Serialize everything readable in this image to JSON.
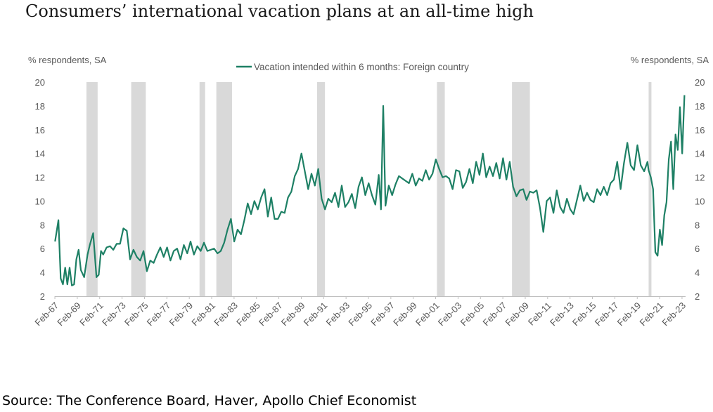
{
  "title": "Consumers’ international vacation plans at an all-time high",
  "source": "Source: The Conference Board, Haver, Apollo Chief Economist",
  "chart_data": {
    "type": "line",
    "ylabel_left": "% respondents, SA",
    "ylabel_right": "% respondents, SA",
    "ylim": [
      2,
      20
    ],
    "yticks": [
      2,
      4,
      6,
      8,
      10,
      12,
      14,
      16,
      18,
      20
    ],
    "xlim": [
      1967.08,
      2023.4
    ],
    "xtick_labels": [
      "Feb-67",
      "Feb-69",
      "Feb-71",
      "Feb-73",
      "Feb-75",
      "Feb-77",
      "Feb-79",
      "Feb-81",
      "Feb-83",
      "Feb-85",
      "Feb-87",
      "Feb-89",
      "Feb-91",
      "Feb-93",
      "Feb-95",
      "Feb-97",
      "Feb-99",
      "Feb-01",
      "Feb-03",
      "Feb-05",
      "Feb-07",
      "Feb-09",
      "Feb-11",
      "Feb-13",
      "Feb-15",
      "Feb-17",
      "Feb-19",
      "Feb-21",
      "Feb-23"
    ],
    "grid": false,
    "legend_position": "top-center",
    "recession_color": "#d9d9d9",
    "recessions": [
      [
        1969.9,
        1970.9
      ],
      [
        1973.9,
        1975.2
      ],
      [
        1980.0,
        1980.5
      ],
      [
        1981.5,
        1982.9
      ],
      [
        1990.5,
        1991.2
      ],
      [
        2001.2,
        2001.9
      ],
      [
        2007.9,
        2009.5
      ],
      [
        2020.1,
        2020.35
      ]
    ],
    "series": [
      {
        "name": "Vacation intended within 6 months: Foreign country",
        "color": "#1e8065",
        "x": [
          1967.1,
          1967.4,
          1967.6,
          1967.8,
          1968.0,
          1968.2,
          1968.4,
          1968.6,
          1968.8,
          1969.0,
          1969.2,
          1969.4,
          1969.7,
          1970.0,
          1970.2,
          1970.5,
          1970.8,
          1971.0,
          1971.2,
          1971.4,
          1971.7,
          1972.0,
          1972.3,
          1972.6,
          1972.9,
          1973.2,
          1973.5,
          1973.8,
          1974.1,
          1974.4,
          1974.7,
          1975.0,
          1975.3,
          1975.6,
          1975.9,
          1976.2,
          1976.5,
          1976.8,
          1977.1,
          1977.4,
          1977.7,
          1978.0,
          1978.3,
          1978.6,
          1978.9,
          1979.2,
          1979.5,
          1979.8,
          1980.1,
          1980.4,
          1980.7,
          1981.0,
          1981.3,
          1981.6,
          1981.9,
          1982.2,
          1982.5,
          1982.8,
          1983.1,
          1983.4,
          1983.7,
          1984.0,
          1984.3,
          1984.6,
          1984.9,
          1985.2,
          1985.5,
          1985.8,
          1986.1,
          1986.4,
          1986.7,
          1987.0,
          1987.3,
          1987.6,
          1987.9,
          1988.2,
          1988.5,
          1988.8,
          1989.1,
          1989.4,
          1989.7,
          1990.0,
          1990.3,
          1990.6,
          1990.9,
          1991.2,
          1991.5,
          1991.8,
          1992.1,
          1992.4,
          1992.7,
          1993.0,
          1993.3,
          1993.6,
          1993.9,
          1994.2,
          1994.5,
          1994.8,
          1995.1,
          1995.4,
          1995.7,
          1996.0,
          1996.2,
          1996.4,
          1996.6,
          1996.9,
          1997.2,
          1997.5,
          1997.8,
          1998.1,
          1998.4,
          1998.7,
          1999.0,
          1999.3,
          1999.6,
          1999.9,
          2000.2,
          2000.5,
          2000.8,
          2001.1,
          2001.4,
          2001.7,
          2002.0,
          2002.3,
          2002.6,
          2002.9,
          2003.2,
          2003.5,
          2003.8,
          2004.1,
          2004.4,
          2004.7,
          2005.0,
          2005.3,
          2005.6,
          2005.9,
          2006.2,
          2006.5,
          2006.8,
          2007.1,
          2007.4,
          2007.7,
          2008.0,
          2008.3,
          2008.6,
          2008.9,
          2009.2,
          2009.5,
          2009.8,
          2010.1,
          2010.4,
          2010.7,
          2011.0,
          2011.3,
          2011.6,
          2011.9,
          2012.2,
          2012.5,
          2012.8,
          2013.1,
          2013.4,
          2013.7,
          2014.0,
          2014.3,
          2014.6,
          2014.9,
          2015.2,
          2015.5,
          2015.8,
          2016.1,
          2016.4,
          2016.7,
          2017.0,
          2017.3,
          2017.6,
          2017.9,
          2018.2,
          2018.5,
          2018.8,
          2019.1,
          2019.4,
          2019.7,
          2020.0,
          2020.1,
          2020.3,
          2020.5,
          2020.7,
          2020.9,
          2021.1,
          2021.3,
          2021.5,
          2021.7,
          2021.9,
          2022.1,
          2022.3,
          2022.5,
          2022.7,
          2022.9,
          2023.1,
          2023.3
        ],
        "values": [
          6.6,
          8.4,
          3.5,
          3.0,
          4.4,
          3.0,
          4.4,
          2.9,
          3.0,
          5.1,
          5.9,
          4.2,
          3.6,
          5.5,
          6.3,
          7.3,
          3.6,
          3.8,
          5.8,
          5.5,
          6.1,
          6.2,
          5.9,
          6.4,
          6.4,
          7.7,
          7.5,
          5.1,
          5.9,
          5.3,
          5.0,
          5.8,
          4.1,
          5.0,
          4.8,
          5.5,
          6.1,
          5.3,
          6.1,
          5.0,
          5.8,
          6.0,
          5.1,
          6.3,
          5.6,
          6.6,
          5.5,
          6.2,
          5.8,
          6.5,
          5.8,
          5.9,
          6.0,
          5.6,
          5.8,
          6.5,
          7.6,
          8.5,
          6.6,
          7.6,
          7.2,
          8.4,
          9.8,
          8.9,
          10.0,
          9.3,
          10.3,
          11.0,
          8.7,
          10.3,
          8.5,
          8.5,
          9.1,
          9.0,
          10.3,
          10.8,
          12.1,
          12.7,
          14.0,
          12.5,
          11.0,
          12.3,
          11.3,
          12.7,
          10.2,
          9.3,
          10.2,
          9.9,
          10.7,
          9.5,
          11.3,
          9.5,
          9.9,
          10.6,
          9.4,
          11.2,
          12.0,
          10.5,
          11.5,
          10.5,
          9.7,
          12.2,
          9.3,
          18.0,
          9.6,
          11.3,
          10.5,
          11.4,
          12.1,
          11.9,
          11.7,
          11.5,
          12.3,
          11.3,
          11.9,
          11.7,
          12.6,
          11.8,
          12.3,
          13.5,
          12.7,
          12.0,
          12.1,
          11.9,
          11.0,
          12.6,
          12.5,
          11.1,
          11.6,
          12.7,
          11.5,
          13.3,
          12.2,
          14.0,
          12.0,
          12.9,
          12.1,
          13.2,
          11.9,
          13.6,
          11.8,
          13.3,
          11.2,
          10.4,
          10.9,
          11.0,
          10.1,
          10.8,
          10.7,
          10.9,
          9.4,
          7.4,
          10.0,
          10.3,
          9.0,
          10.9,
          9.5,
          9.0,
          10.2,
          9.3,
          8.9,
          10.1,
          11.3,
          10.0,
          10.7,
          10.1,
          9.9,
          11.0,
          10.5,
          11.2,
          10.5,
          11.5,
          11.8,
          13.3,
          11.0,
          13.2,
          14.9,
          13.0,
          12.6,
          14.7,
          13.0,
          12.5,
          13.3,
          12.6,
          12.0,
          11.0,
          5.7,
          5.4,
          7.6,
          6.3,
          8.8,
          9.9,
          13.5,
          15.0,
          11.0,
          15.6,
          14.3,
          17.9,
          14.0,
          18.9
        ]
      }
    ]
  }
}
